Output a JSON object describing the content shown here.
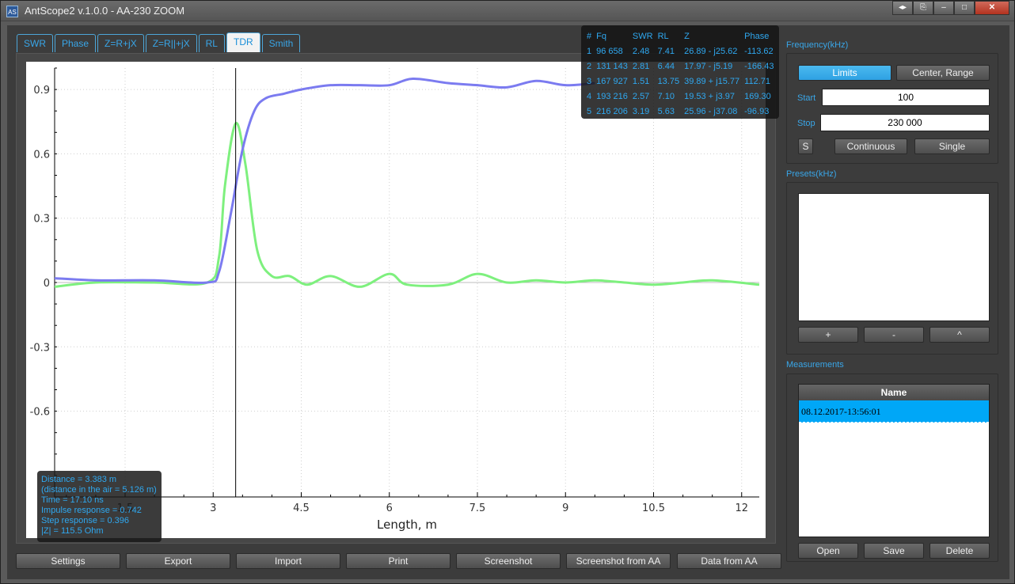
{
  "window": {
    "icon_text": "AS",
    "title": "AntScope2 v.1.0.0 - AA-230 ZOOM",
    "buttons": [
      "◂▸",
      "⎘",
      "–",
      "□",
      "✕"
    ]
  },
  "tabs": [
    "SWR",
    "Phase",
    "Z=R+jX",
    "Z=R||+jX",
    "RL",
    "TDR",
    "Smith"
  ],
  "active_tab": "TDR",
  "marker_table": {
    "headers": [
      "#",
      "Fq",
      "SWR",
      "RL",
      "Z",
      "Phase"
    ],
    "rows": [
      [
        "1",
        "96 658",
        "2.48",
        "7.41",
        "26.89 - j25.62",
        "-113.62"
      ],
      [
        "2",
        "131 143",
        "2.81",
        "6.44",
        "17.97 - j5.19",
        "-166.43"
      ],
      [
        "3",
        "167 927",
        "1.51",
        "13.75",
        "39.89 + j15.77",
        "112.71"
      ],
      [
        "4",
        "193 216",
        "2.57",
        "7.10",
        "19.53 + j3.97",
        "169.30"
      ],
      [
        "5",
        "216 206",
        "3.19",
        "5.63",
        "25.96 - j37.08",
        "-96.93"
      ]
    ]
  },
  "cursor_info": [
    "Distance = 3.383 m",
    "(distance in the air = 5.126 m)",
    "Time = 17.10 ns",
    "Impulse response = 0.742",
    "Step response = 0.396",
    "|Z| = 115.5 Ohm"
  ],
  "chart_data": {
    "type": "line",
    "xlabel": "Length, m",
    "ylabel": "",
    "xlim": [
      0.3,
      12.3
    ],
    "ylim": [
      -1.0,
      1.0
    ],
    "x_ticks": [
      1.5,
      3,
      4.5,
      6,
      7.5,
      9,
      10.5,
      12
    ],
    "y_ticks": [
      0.9,
      0.6,
      0.3,
      0,
      -0.3,
      -0.6
    ],
    "cursor_x": 3.383,
    "colors": {
      "step": "#7b7bf0",
      "impulse": "#7ef07e"
    },
    "series": [
      {
        "values": [
          [
            0.3,
            0.02
          ],
          [
            1.0,
            0.01
          ],
          [
            2.0,
            0.01
          ],
          [
            2.9,
            0.0
          ],
          [
            3.1,
            0.05
          ],
          [
            3.3,
            0.32
          ],
          [
            3.5,
            0.62
          ],
          [
            3.7,
            0.8
          ],
          [
            3.9,
            0.86
          ],
          [
            4.2,
            0.88
          ],
          [
            4.5,
            0.9
          ],
          [
            5.0,
            0.92
          ],
          [
            5.5,
            0.92
          ],
          [
            6.0,
            0.92
          ],
          [
            6.4,
            0.95
          ],
          [
            7.0,
            0.93
          ],
          [
            7.5,
            0.92
          ],
          [
            8.0,
            0.91
          ],
          [
            8.5,
            0.94
          ],
          [
            9.0,
            0.92
          ],
          [
            9.5,
            0.93
          ]
        ]
      },
      {
        "values": [
          [
            0.3,
            -0.02
          ],
          [
            1.0,
            0.0
          ],
          [
            2.0,
            0.0
          ],
          [
            2.9,
            0.0
          ],
          [
            3.1,
            0.12
          ],
          [
            3.2,
            0.45
          ],
          [
            3.383,
            0.742
          ],
          [
            3.55,
            0.55
          ],
          [
            3.75,
            0.15
          ],
          [
            4.0,
            0.03
          ],
          [
            4.3,
            0.03
          ],
          [
            4.6,
            -0.01
          ],
          [
            5.0,
            0.03
          ],
          [
            5.5,
            -0.02
          ],
          [
            6.0,
            0.04
          ],
          [
            6.3,
            -0.01
          ],
          [
            7.0,
            -0.01
          ],
          [
            7.5,
            0.04
          ],
          [
            8.0,
            0.0
          ],
          [
            8.5,
            0.01
          ],
          [
            9.0,
            0.0
          ],
          [
            9.5,
            0.01
          ],
          [
            10.0,
            0.0
          ],
          [
            10.5,
            -0.01
          ],
          [
            11.0,
            0.0
          ],
          [
            11.5,
            0.01
          ],
          [
            12.3,
            -0.01
          ]
        ]
      }
    ]
  },
  "right_panel": {
    "frequency_title": "Frequency(kHz)",
    "limits_label": "Limits",
    "center_range_label": "Center, Range",
    "start_label": "Start",
    "start_value": "100",
    "stop_label": "Stop",
    "stop_value": "230 000",
    "s_label": "S",
    "continuous_label": "Continuous",
    "single_label": "Single",
    "presets_title": "Presets(kHz)",
    "add_label": "+",
    "remove_label": "-",
    "up_label": "^",
    "measurements_title": "Measurements",
    "list_header": "Name",
    "measurements": [
      "08.12.2017-13:56:01"
    ],
    "open_label": "Open",
    "save_label": "Save",
    "delete_label": "Delete"
  },
  "bottom_buttons": [
    "Settings",
    "Export",
    "Import",
    "Print",
    "Screenshot",
    "Screenshot from AA",
    "Data from AA"
  ]
}
